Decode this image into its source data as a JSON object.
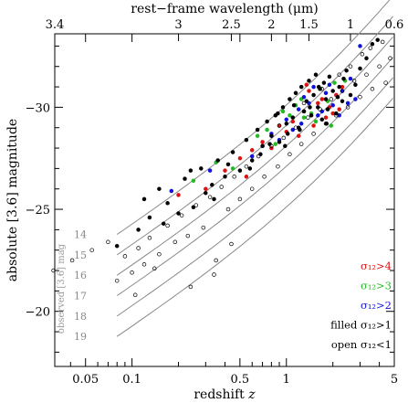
{
  "chart_data": {
    "type": "scatter",
    "top_axis": {
      "label": "rest−frame wavelength (μm)",
      "ticks": [
        {
          "text": "3.4",
          "z": 0.0316
        },
        {
          "text": "3",
          "z": 0.2
        },
        {
          "text": "2.5",
          "z": 0.44
        },
        {
          "text": "2",
          "z": 0.8
        },
        {
          "text": "1.5",
          "z": 1.4
        },
        {
          "text": "1",
          "z": 2.6
        },
        {
          "text": "0.6",
          "z": 5.0
        }
      ]
    },
    "xlabel": "redshift z",
    "ylabel": "absolute [3.6] magnitude",
    "x_scale": "log",
    "xlim": [
      0.0316,
      5.0
    ],
    "ylim": [
      -17.3,
      -33.6
    ],
    "x_ticks": [
      {
        "text": "0.05",
        "value": 0.05
      },
      {
        "text": "0.1",
        "value": 0.1
      },
      {
        "text": "0.5",
        "value": 0.5
      },
      {
        "text": "1",
        "value": 1
      },
      {
        "text": "5",
        "value": 5
      }
    ],
    "y_ticks": [
      {
        "text": "−30",
        "value": -30
      },
      {
        "text": "−25",
        "value": -25
      },
      {
        "text": "−20",
        "value": -20
      }
    ],
    "observed_tracks": {
      "label": "observed [3.6] mag",
      "mags": [
        "14",
        "15",
        "16",
        "17",
        "18",
        "19"
      ],
      "m_values": [
        14,
        15,
        16,
        17,
        18,
        19
      ]
    },
    "legend": {
      "placement": "bottom-right",
      "entries": [
        {
          "text": "σ₁₂>4",
          "color": "#dd1111"
        },
        {
          "text": "σ₁₂>3",
          "color": "#22bb22"
        },
        {
          "text": "σ₁₂>2",
          "color": "#1111dd"
        },
        {
          "text": "filled σ₁₂>1",
          "color": "#000000"
        },
        {
          "text": "open σ₁₂<1",
          "color": "#000000"
        }
      ]
    },
    "series": [
      {
        "values": [
          [
            0.2,
            -25.7
          ],
          [
            0.3,
            -26.0
          ],
          [
            0.5,
            -27.5
          ],
          [
            0.7,
            -28.3
          ],
          [
            0.9,
            -29.1
          ],
          [
            1.1,
            -29.3
          ],
          [
            1.3,
            -29.8
          ],
          [
            1.6,
            -30.2
          ],
          [
            1.9,
            -30.0
          ],
          [
            2.1,
            -30.6
          ],
          [
            2.3,
            -31.0
          ],
          [
            0.6,
            -27.9
          ],
          [
            1.0,
            -28.8
          ],
          [
            1.4,
            -30.8
          ],
          [
            1.8,
            -29.5
          ],
          [
            0.4,
            -26.9
          ],
          [
            1.2,
            -28.6
          ],
          [
            2.0,
            -29.7
          ],
          [
            1.5,
            -29.1
          ],
          [
            0.8,
            -28.0
          ],
          [
            1.7,
            -30.4
          ],
          [
            2.2,
            -29.9
          ],
          [
            1.35,
            -31.1
          ],
          [
            0.55,
            -26.6
          ]
        ]
      },
      {
        "values": [
          [
            0.25,
            -26.4
          ],
          [
            0.45,
            -27.0
          ],
          [
            0.65,
            -28.6
          ],
          [
            0.85,
            -28.2
          ],
          [
            1.05,
            -29.6
          ],
          [
            1.25,
            -30.4
          ],
          [
            1.45,
            -29.7
          ],
          [
            1.65,
            -30.9
          ],
          [
            1.85,
            -30.3
          ],
          [
            2.05,
            -31.2
          ],
          [
            1.15,
            -30.1
          ],
          [
            0.75,
            -28.9
          ],
          [
            1.55,
            -29.3
          ],
          [
            0.95,
            -29.8
          ],
          [
            2.4,
            -31.3
          ],
          [
            1.95,
            -29.1
          ],
          [
            0.35,
            -27.3
          ],
          [
            1.3,
            -29.5
          ]
        ]
      },
      {
        "values": [
          [
            0.18,
            -25.9
          ],
          [
            0.32,
            -26.9
          ],
          [
            0.6,
            -27.6
          ],
          [
            0.8,
            -28.7
          ],
          [
            1.0,
            -29.4
          ],
          [
            1.2,
            -29.9
          ],
          [
            1.4,
            -30.2
          ],
          [
            1.6,
            -29.6
          ],
          [
            1.8,
            -30.7
          ],
          [
            2.0,
            -30.1
          ],
          [
            2.3,
            -30.8
          ],
          [
            2.6,
            -31.4
          ],
          [
            3.0,
            -33.0
          ],
          [
            1.1,
            -28.9
          ],
          [
            1.5,
            -31.0
          ],
          [
            2.2,
            -29.6
          ],
          [
            0.9,
            -28.4
          ],
          [
            1.7,
            -29.8
          ],
          [
            1.9,
            -31.1
          ],
          [
            1.3,
            -30.5
          ],
          [
            0.7,
            -28.1
          ],
          [
            2.8,
            -30.4
          ],
          [
            1.25,
            -29.2
          ],
          [
            2.5,
            -30.2
          ]
        ]
      },
      {
        "values": [
          [
            0.08,
            -23.2
          ],
          [
            0.11,
            -24.0
          ],
          [
            0.13,
            -24.6
          ],
          [
            0.15,
            -26.0
          ],
          [
            0.17,
            -25.3
          ],
          [
            0.2,
            -24.8
          ],
          [
            0.22,
            -26.5
          ],
          [
            0.25,
            -25.1
          ],
          [
            0.28,
            -27.0
          ],
          [
            0.3,
            -25.8
          ],
          [
            0.33,
            -26.2
          ],
          [
            0.36,
            -27.4
          ],
          [
            0.4,
            -26.6
          ],
          [
            0.45,
            -27.8
          ],
          [
            0.5,
            -26.9
          ],
          [
            0.55,
            -28.4
          ],
          [
            0.6,
            -27.4
          ],
          [
            0.65,
            -28.9
          ],
          [
            0.7,
            -28.1
          ],
          [
            0.75,
            -29.3
          ],
          [
            0.8,
            -28.6
          ],
          [
            0.85,
            -29.6
          ],
          [
            0.9,
            -28.3
          ],
          [
            0.95,
            -30.0
          ],
          [
            1.0,
            -29.2
          ],
          [
            1.05,
            -30.4
          ],
          [
            1.1,
            -29.5
          ],
          [
            1.15,
            -30.7
          ],
          [
            1.2,
            -29.0
          ],
          [
            1.25,
            -31.0
          ],
          [
            1.3,
            -29.8
          ],
          [
            1.35,
            -30.3
          ],
          [
            1.4,
            -31.3
          ],
          [
            1.45,
            -29.6
          ],
          [
            1.5,
            -30.6
          ],
          [
            1.55,
            -31.6
          ],
          [
            1.6,
            -30.0
          ],
          [
            1.65,
            -30.9
          ],
          [
            1.7,
            -29.4
          ],
          [
            1.75,
            -31.2
          ],
          [
            1.8,
            -30.4
          ],
          [
            1.85,
            -29.9
          ],
          [
            1.9,
            -31.5
          ],
          [
            2.0,
            -30.8
          ],
          [
            2.1,
            -29.7
          ],
          [
            2.2,
            -31.0
          ],
          [
            2.3,
            -30.3
          ],
          [
            2.45,
            -31.8
          ],
          [
            2.6,
            -30.6
          ],
          [
            2.8,
            -31.1
          ],
          [
            3.0,
            -31.9
          ],
          [
            3.3,
            -32.4
          ],
          [
            3.6,
            -33.1
          ],
          [
            3.9,
            -33.3
          ],
          [
            1.02,
            -28.7
          ],
          [
            1.12,
            -30.1
          ],
          [
            1.22,
            -28.9
          ],
          [
            1.42,
            -30.0
          ],
          [
            1.62,
            -31.0
          ],
          [
            1.82,
            -29.2
          ],
          [
            2.15,
            -30.5
          ],
          [
            2.35,
            -31.4
          ],
          [
            0.58,
            -27.0
          ],
          [
            0.68,
            -27.7
          ],
          [
            0.78,
            -28.2
          ],
          [
            0.88,
            -29.7
          ],
          [
            0.98,
            -28.1
          ],
          [
            0.12,
            -25.5
          ],
          [
            0.16,
            -24.3
          ],
          [
            0.24,
            -26.9
          ],
          [
            0.34,
            -25.5
          ],
          [
            0.42,
            -27.2
          ]
        ]
      },
      {
        "values": [
          [
            0.031,
            -22.0
          ],
          [
            0.041,
            -22.5
          ],
          [
            0.055,
            -23.0
          ],
          [
            0.07,
            -23.4
          ],
          [
            0.08,
            -21.5
          ],
          [
            0.09,
            -22.7
          ],
          [
            0.1,
            -21.9
          ],
          [
            0.11,
            -23.1
          ],
          [
            0.12,
            -22.3
          ],
          [
            0.13,
            -23.6
          ],
          [
            0.15,
            -22.8
          ],
          [
            0.17,
            -24.2
          ],
          [
            0.19,
            -23.4
          ],
          [
            0.21,
            -24.7
          ],
          [
            0.23,
            -23.7
          ],
          [
            0.26,
            -25.2
          ],
          [
            0.29,
            -24.1
          ],
          [
            0.32,
            -25.6
          ],
          [
            0.35,
            -22.5
          ],
          [
            0.38,
            -26.1
          ],
          [
            0.42,
            -25.0
          ],
          [
            0.46,
            -26.6
          ],
          [
            0.5,
            -25.5
          ],
          [
            0.55,
            -27.1
          ],
          [
            0.6,
            -26.0
          ],
          [
            0.66,
            -27.6
          ],
          [
            0.72,
            -26.6
          ],
          [
            0.8,
            -28.1
          ],
          [
            0.88,
            -27.1
          ],
          [
            0.96,
            -28.5
          ],
          [
            1.05,
            -27.7
          ],
          [
            1.15,
            -29.0
          ],
          [
            1.25,
            -28.2
          ],
          [
            1.38,
            -29.5
          ],
          [
            1.5,
            -28.7
          ],
          [
            1.65,
            -29.9
          ],
          [
            1.8,
            -29.2
          ],
          [
            1.95,
            -30.4
          ],
          [
            2.1,
            -29.6
          ],
          [
            2.3,
            -30.8
          ],
          [
            2.5,
            -30.0
          ],
          [
            2.75,
            -31.3
          ],
          [
            3.0,
            -30.5
          ],
          [
            3.3,
            -31.6
          ],
          [
            3.6,
            -30.9
          ],
          [
            4.0,
            -32.0
          ],
          [
            4.4,
            -31.2
          ],
          [
            4.7,
            -32.4
          ],
          [
            2.2,
            -31.6
          ],
          [
            2.6,
            -32.0
          ],
          [
            3.1,
            -32.6
          ],
          [
            3.5,
            -32.9
          ],
          [
            4.2,
            -33.2
          ],
          [
            1.7,
            -30.9
          ],
          [
            1.3,
            -30.2
          ],
          [
            0.9,
            -29.1
          ],
          [
            0.14,
            -22.1
          ],
          [
            0.105,
            -20.8
          ],
          [
            0.24,
            -21.2
          ],
          [
            0.34,
            -21.8
          ],
          [
            0.44,
            -23.3
          ]
        ]
      }
    ]
  }
}
